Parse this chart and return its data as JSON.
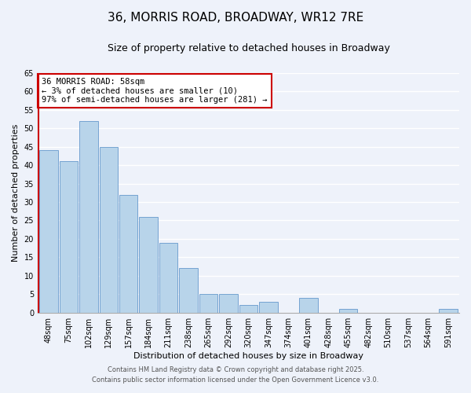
{
  "title": "36, MORRIS ROAD, BROADWAY, WR12 7RE",
  "subtitle": "Size of property relative to detached houses in Broadway",
  "xlabel": "Distribution of detached houses by size in Broadway",
  "ylabel": "Number of detached properties",
  "categories": [
    "48sqm",
    "75sqm",
    "102sqm",
    "129sqm",
    "157sqm",
    "184sqm",
    "211sqm",
    "238sqm",
    "265sqm",
    "292sqm",
    "320sqm",
    "347sqm",
    "374sqm",
    "401sqm",
    "428sqm",
    "455sqm",
    "482sqm",
    "510sqm",
    "537sqm",
    "564sqm",
    "591sqm"
  ],
  "values": [
    44,
    41,
    52,
    45,
    32,
    26,
    19,
    12,
    5,
    5,
    2,
    3,
    0,
    4,
    0,
    1,
    0,
    0,
    0,
    0,
    1
  ],
  "bar_color": "#b8d4ea",
  "bar_edge_color": "#6699cc",
  "highlight_line_color": "#cc0000",
  "ylim": [
    0,
    65
  ],
  "yticks": [
    0,
    5,
    10,
    15,
    20,
    25,
    30,
    35,
    40,
    45,
    50,
    55,
    60,
    65
  ],
  "annotation_title": "36 MORRIS ROAD: 58sqm",
  "annotation_line1": "← 3% of detached houses are smaller (10)",
  "annotation_line2": "97% of semi-detached houses are larger (281) →",
  "annotation_box_color": "#ffffff",
  "annotation_box_edge": "#cc0000",
  "footer_line1": "Contains HM Land Registry data © Crown copyright and database right 2025.",
  "footer_line2": "Contains public sector information licensed under the Open Government Licence v3.0.",
  "background_color": "#eef2fa",
  "grid_color": "#ffffff",
  "title_fontsize": 11,
  "subtitle_fontsize": 9,
  "axis_label_fontsize": 8,
  "tick_fontsize": 7,
  "footer_fontsize": 6,
  "annotation_fontsize": 7.5
}
